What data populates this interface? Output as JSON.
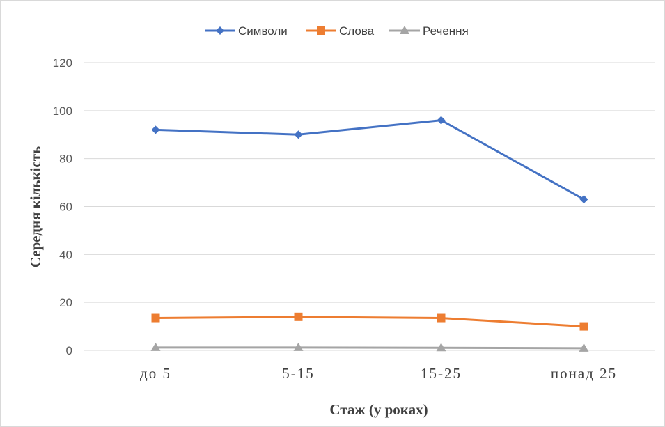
{
  "chart_data": {
    "type": "line",
    "categories": [
      "до 5",
      "5-15",
      "15-25",
      "понад 25"
    ],
    "series": [
      {
        "name": "Символи",
        "values": [
          92,
          90,
          96,
          63
        ],
        "color": "#4472c4",
        "marker": "diamond"
      },
      {
        "name": "Слова",
        "values": [
          13.5,
          14,
          13.5,
          10
        ],
        "color": "#ed7d31",
        "marker": "square"
      },
      {
        "name": "Речення",
        "values": [
          1.2,
          1.2,
          1.1,
          0.9
        ],
        "color": "#a5a5a5",
        "marker": "triangle"
      }
    ],
    "xlabel": "Стаж (у роках)",
    "ylabel": "Середня кількість",
    "ylim": [
      0,
      120
    ],
    "yticks": [
      0,
      20,
      40,
      60,
      80,
      100,
      120
    ],
    "grid": true,
    "legend_position": "top"
  }
}
